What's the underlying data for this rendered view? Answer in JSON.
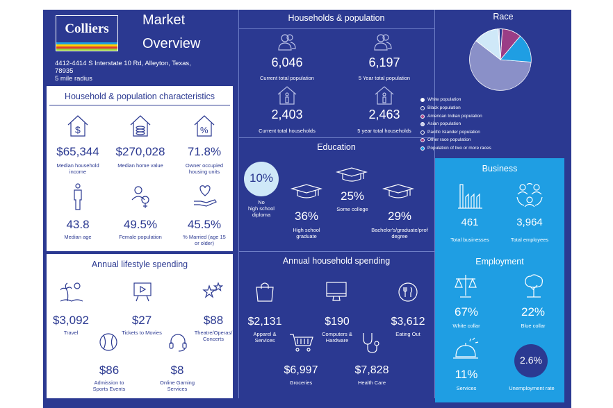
{
  "brand": {
    "logo_text": "Colliers"
  },
  "title": {
    "line1": "Market",
    "line2": "Overview"
  },
  "address": {
    "line1": "4412-4414 S Interstate 10 Rd, Alleyton, Texas,",
    "line2": "78935",
    "radius": "5 mile radius"
  },
  "household_characteristics": {
    "heading": "Household & population characteristics",
    "items": [
      {
        "value": "$65,344",
        "label1": "Median household",
        "label2": "income",
        "icon": "house-dollar-icon"
      },
      {
        "value": "$270,028",
        "label1": "Median home value",
        "label2": "",
        "icon": "house-coins-icon"
      },
      {
        "value": "71.8%",
        "label1": "Owner occupied",
        "label2": "housing units",
        "icon": "house-percent-icon"
      },
      {
        "value": "43.8",
        "label1": "Median age",
        "label2": "",
        "icon": "person-icon"
      },
      {
        "value": "49.5%",
        "label1": "Female population",
        "label2": "",
        "icon": "female-icon"
      },
      {
        "value": "45.5%",
        "label1": "% Married (age 15",
        "label2": "or older)",
        "icon": "heart-hand-icon"
      }
    ]
  },
  "households_population": {
    "heading": "Households & population",
    "items": [
      {
        "value": "6,046",
        "label": "Current total population",
        "icon": "people-icon"
      },
      {
        "value": "6,197",
        "label": "5 Year total population",
        "icon": "people-icon"
      },
      {
        "value": "2,403",
        "label": "Current total households",
        "icon": "household-icon"
      },
      {
        "value": "2,463",
        "label": "5 year total households",
        "icon": "household-icon"
      }
    ]
  },
  "education": {
    "heading": "Education",
    "items": [
      {
        "value": "10%",
        "label1": "No",
        "label2": "high school",
        "label3": "diploma"
      },
      {
        "value": "36%",
        "label1": "High school",
        "label2": "graduate"
      },
      {
        "value": "25%",
        "label1": "Some college",
        "label2": ""
      },
      {
        "value": "29%",
        "label1": "Bachelor's/graduate/prof",
        "label2": "degree"
      }
    ]
  },
  "race": {
    "heading": "Race",
    "legend": [
      {
        "label": "White population",
        "color": "#8a90c8"
      },
      {
        "label": "Black population",
        "color": "#2b3991"
      },
      {
        "label": "American Indian population",
        "color": "#b04a8e"
      },
      {
        "label": "Asian population",
        "color": "#7a87c9"
      },
      {
        "label": "Pacific Islander population",
        "color": "#2b3991"
      },
      {
        "label": "Other race population",
        "color": "#9b3d86"
      },
      {
        "label": "Population of two or more races",
        "color": "#1f9ee3"
      }
    ]
  },
  "lifestyle": {
    "heading": "Annual lifestyle spending",
    "items": [
      {
        "value": "$3,092",
        "label1": "Travel",
        "label2": ""
      },
      {
        "value": "$27",
        "label1": "Tickets to Movies",
        "label2": ""
      },
      {
        "value": "$88",
        "label1": "Theatre/Operas/",
        "label2": "Concerts"
      },
      {
        "value": "$86",
        "label1": "Admission to",
        "label2": "Sports Events"
      },
      {
        "value": "$8",
        "label1": "Online Gaming",
        "label2": "Services"
      }
    ]
  },
  "household_spending": {
    "heading": "Annual household spending",
    "items": [
      {
        "value": "$2,131",
        "label1": "Apparel &",
        "label2": "Services"
      },
      {
        "value": "$190",
        "label1": "Computers &",
        "label2": "Hardware"
      },
      {
        "value": "$3,612",
        "label1": "Eating Out",
        "label2": ""
      },
      {
        "value": "$6,997",
        "label1": "Groceries",
        "label2": ""
      },
      {
        "value": "$7,828",
        "label1": "Health Care",
        "label2": ""
      }
    ]
  },
  "business": {
    "heading": "Business",
    "items": [
      {
        "value": "461",
        "label": "Total businesses"
      },
      {
        "value": "3,964",
        "label": "Total employees"
      }
    ]
  },
  "employment": {
    "heading": "Employment",
    "items": [
      {
        "value": "67%",
        "label": "White collar"
      },
      {
        "value": "22%",
        "label": "Blue collar"
      },
      {
        "value": "11%",
        "label": "Services"
      },
      {
        "value": "2.6%",
        "label": "Unemployment rate"
      }
    ]
  }
}
